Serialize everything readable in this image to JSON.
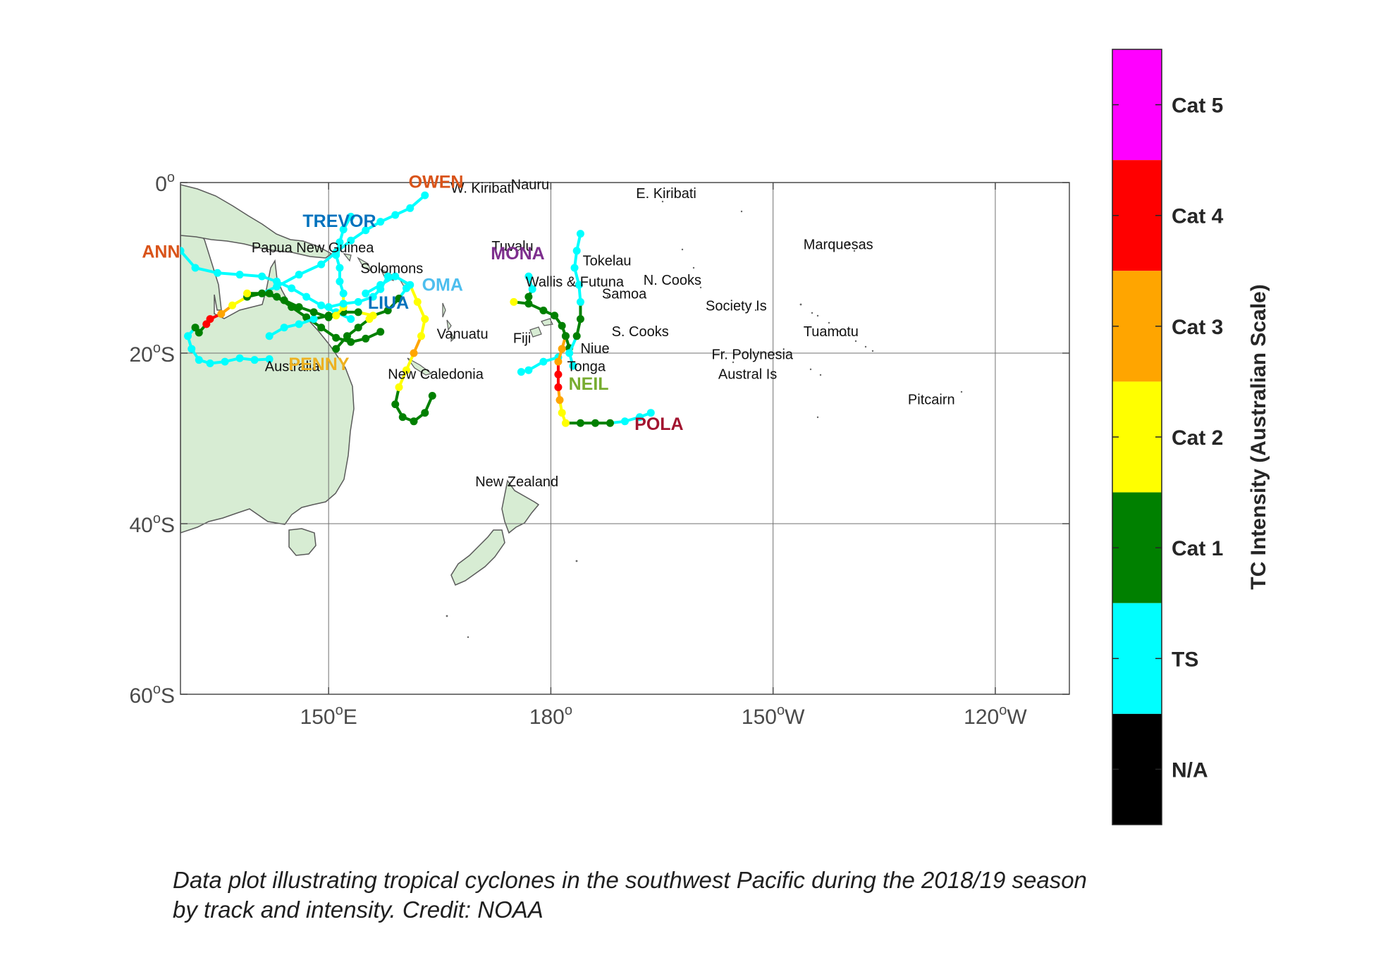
{
  "colorbar": {
    "title": "TC Intensity (Australian Scale)",
    "categories": [
      {
        "label": "Cat 5",
        "color": "#ff00ff"
      },
      {
        "label": "Cat 4",
        "color": "#ff0000"
      },
      {
        "label": "Cat 3",
        "color": "#ffa500"
      },
      {
        "label": "Cat 2",
        "color": "#ffff00"
      },
      {
        "label": "Cat 1",
        "color": "#008000"
      },
      {
        "label": "TS",
        "color": "#00ffff"
      },
      {
        "label": "N/A",
        "color": "#000000"
      }
    ]
  },
  "axes": {
    "x_ticks": [
      {
        "lon": 150,
        "label": "150°E"
      },
      {
        "lon": 180,
        "label": "180°"
      },
      {
        "lon": 210,
        "label": "150°W"
      },
      {
        "lon": 240,
        "label": "120°W"
      }
    ],
    "y_ticks": [
      {
        "lat": 0,
        "label": "0°"
      },
      {
        "lat": -20,
        "label": "20°S"
      },
      {
        "lat": -40,
        "label": "40°S"
      },
      {
        "lat": -60,
        "label": "60°S"
      }
    ],
    "lon_range": [
      130,
      250
    ],
    "lat_range": [
      -60,
      0
    ]
  },
  "place_labels": [
    {
      "text": "W. Kiribati",
      "lon": 166.5,
      "lat": -1.2
    },
    {
      "text": "Nauru",
      "lon": 174.6,
      "lat": -0.8
    },
    {
      "text": "E. Kiribati",
      "lon": 191.5,
      "lat": -1.8
    },
    {
      "text": "Papua New Guinea",
      "lon": 139.6,
      "lat": -8.2
    },
    {
      "text": "Solomons",
      "lon": 154.3,
      "lat": -10.6
    },
    {
      "text": "Tuvalu",
      "lon": 172.0,
      "lat": -8.0
    },
    {
      "text": "Tokelau",
      "lon": 184.3,
      "lat": -9.7
    },
    {
      "text": "Wallis & Futuna",
      "lon": 176.6,
      "lat": -12.2
    },
    {
      "text": "N. Cooks",
      "lon": 192.5,
      "lat": -12.0
    },
    {
      "text": "Samoa",
      "lon": 186.9,
      "lat": -13.6
    },
    {
      "text": "Marquesas",
      "lon": 214.1,
      "lat": -7.8
    },
    {
      "text": "Society Is",
      "lon": 200.9,
      "lat": -15.0
    },
    {
      "text": "Vanuatu",
      "lon": 164.6,
      "lat": -18.3
    },
    {
      "text": "Fiji",
      "lon": 174.9,
      "lat": -18.8
    },
    {
      "text": "S. Cooks",
      "lon": 188.2,
      "lat": -18.0
    },
    {
      "text": "Niue",
      "lon": 184.0,
      "lat": -20.0
    },
    {
      "text": "Tuamotu",
      "lon": 214.1,
      "lat": -18.0
    },
    {
      "text": "Fr. Polynesia",
      "lon": 201.7,
      "lat": -20.7
    },
    {
      "text": "Austral Is",
      "lon": 202.6,
      "lat": -23.0
    },
    {
      "text": "Tonga",
      "lon": 182.2,
      "lat": -22.1
    },
    {
      "text": "New Caledonia",
      "lon": 158.0,
      "lat": -23.0
    },
    {
      "text": "Australia",
      "lon": 141.4,
      "lat": -22.1
    },
    {
      "text": "Pitcairn",
      "lon": 228.2,
      "lat": -26.0
    },
    {
      "text": "New Zealand",
      "lon": 169.8,
      "lat": -35.6
    }
  ],
  "storm_labels": [
    {
      "text": "OWEN",
      "color": "#d95319",
      "lon": 160.8,
      "lat": -0.6
    },
    {
      "text": "TREVOR",
      "color": "#0072bd",
      "lon": 146.5,
      "lat": -5.2
    },
    {
      "text": "ANN",
      "color": "#d95319",
      "lon": 124.8,
      "lat": -8.8
    },
    {
      "text": "MONA",
      "color": "#7e2f8e",
      "lon": 171.9,
      "lat": -9.0
    },
    {
      "text": "OMA",
      "color": "#4dbeee",
      "lon": 162.6,
      "lat": -12.7
    },
    {
      "text": "LIUA",
      "color": "#0072bd",
      "lon": 155.3,
      "lat": -14.8
    },
    {
      "text": "PENNY",
      "color": "#edb120",
      "lon": 144.6,
      "lat": -22.0
    },
    {
      "text": "NEIL",
      "color": "#77ac30",
      "lon": 182.4,
      "lat": -24.3
    },
    {
      "text": "POLA",
      "color": "#a2142f",
      "lon": 191.3,
      "lat": -29.0
    }
  ],
  "tracks": [
    {
      "storm": "ANN",
      "points": [
        [
          130,
          -8,
          "TS"
        ],
        [
          132,
          -10,
          "TS"
        ],
        [
          135,
          -10.6,
          "TS"
        ],
        [
          138,
          -10.8,
          "TS"
        ],
        [
          141,
          -11,
          "TS"
        ],
        [
          143,
          -11.6,
          "TS"
        ],
        [
          145,
          -12.4,
          "TS"
        ],
        [
          147,
          -13.4,
          "TS"
        ],
        [
          149,
          -14.4,
          "TS"
        ],
        [
          151,
          -15.2,
          "TS"
        ],
        [
          153,
          -16,
          "TS"
        ]
      ]
    },
    {
      "storm": "OWEN-1",
      "points": [
        [
          163,
          -1.5,
          "TS"
        ],
        [
          161,
          -3,
          "TS"
        ],
        [
          159,
          -3.8,
          "TS"
        ],
        [
          157,
          -4.6,
          "TS"
        ],
        [
          155,
          -5.6,
          "TS"
        ],
        [
          153,
          -6.8,
          "TS"
        ],
        [
          151,
          -8.2,
          "TS"
        ],
        [
          149,
          -9.6,
          "TS"
        ],
        [
          146,
          -10.8,
          "TS"
        ],
        [
          143,
          -12.2,
          "TS"
        ],
        [
          141,
          -13,
          "TS"
        ],
        [
          139,
          -13.4,
          "Cat 1"
        ],
        [
          137,
          -14.4,
          "Cat 2"
        ],
        [
          135.5,
          -15.4,
          "Cat 3"
        ],
        [
          134,
          -16,
          "Cat 4"
        ],
        [
          133.5,
          -16.6,
          "Cat 4"
        ],
        [
          132.5,
          -17.6,
          "Cat 1"
        ]
      ]
    },
    {
      "storm": "OWEN-2",
      "points": [
        [
          132,
          -17,
          "Cat 1"
        ],
        [
          131,
          -18,
          "TS"
        ],
        [
          131.5,
          -19.5,
          "TS"
        ],
        [
          132.5,
          -20.8,
          "TS"
        ],
        [
          134,
          -21.2,
          "TS"
        ],
        [
          136,
          -21,
          "TS"
        ],
        [
          138,
          -20.6,
          "TS"
        ],
        [
          140,
          -20.8,
          "TS"
        ],
        [
          142,
          -20.7,
          "TS"
        ]
      ]
    },
    {
      "storm": "OWEN-3",
      "points": [
        [
          139,
          -13,
          "Cat 2"
        ],
        [
          141,
          -13,
          "Cat 1"
        ],
        [
          143,
          -13.4,
          "Cat 1"
        ],
        [
          145,
          -14.6,
          "Cat 1"
        ],
        [
          147,
          -15.8,
          "Cat 1"
        ],
        [
          149,
          -17,
          "Cat 1"
        ],
        [
          151,
          -18.2,
          "Cat 1"
        ],
        [
          153,
          -18.7,
          "Cat 1"
        ],
        [
          155,
          -18.3,
          "Cat 1"
        ],
        [
          157,
          -17.5,
          "Cat 1"
        ]
      ]
    },
    {
      "storm": "PENNY",
      "points": [
        [
          142,
          -18,
          "TS"
        ],
        [
          144,
          -17,
          "TS"
        ],
        [
          146,
          -16.6,
          "TS"
        ],
        [
          148,
          -16,
          "TS"
        ],
        [
          150,
          -15.6,
          "Cat 1"
        ],
        [
          152,
          -15.2,
          "Cat 1"
        ],
        [
          154,
          -15.2,
          "Cat 1"
        ],
        [
          156,
          -15.6,
          "Cat 2"
        ],
        [
          158,
          -15,
          "Cat 1"
        ],
        [
          159.5,
          -13.6,
          "Cat 1"
        ],
        [
          160.5,
          -12.4,
          "TS"
        ]
      ]
    },
    {
      "storm": "PENNY-2",
      "points": [
        [
          155.5,
          -16,
          "Cat 2"
        ],
        [
          154,
          -17,
          "Cat 1"
        ],
        [
          152.5,
          -18,
          "Cat 1"
        ],
        [
          151,
          -19.5,
          "Cat 1"
        ]
      ]
    },
    {
      "storm": "TREVOR",
      "points": [
        [
          153,
          -4,
          "TS"
        ],
        [
          152,
          -5.5,
          "TS"
        ],
        [
          151.5,
          -7,
          "TS"
        ],
        [
          151,
          -8.5,
          "TS"
        ],
        [
          151.5,
          -10,
          "TS"
        ],
        [
          151.5,
          -11.6,
          "TS"
        ],
        [
          152,
          -13,
          "TS"
        ],
        [
          152,
          -14.6,
          "Cat 2"
        ],
        [
          151,
          -15.6,
          "Cat 2"
        ],
        [
          150,
          -15.8,
          "Cat 1"
        ],
        [
          148,
          -15.2,
          "Cat 1"
        ],
        [
          146,
          -14.6,
          "Cat 1"
        ],
        [
          144,
          -13.8,
          "Cat 1"
        ],
        [
          142,
          -13,
          "Cat 1"
        ]
      ]
    },
    {
      "storm": "OMA",
      "points": [
        [
          155,
          -13,
          "TS"
        ],
        [
          157,
          -12,
          "TS"
        ],
        [
          159,
          -11,
          "TS"
        ],
        [
          161,
          -12,
          "TS"
        ],
        [
          162,
          -14,
          "Cat 2"
        ],
        [
          163,
          -16,
          "Cat 2"
        ],
        [
          162.5,
          -18,
          "Cat 2"
        ],
        [
          161.5,
          -20,
          "Cat 3"
        ],
        [
          160.5,
          -22,
          "Cat 2"
        ],
        [
          159.5,
          -24,
          "Cat 2"
        ],
        [
          159,
          -26,
          "Cat 1"
        ],
        [
          160,
          -27.5,
          "Cat 1"
        ],
        [
          161.5,
          -28,
          "Cat 1"
        ],
        [
          163,
          -27,
          "Cat 1"
        ],
        [
          164,
          -25,
          "Cat 1"
        ]
      ]
    },
    {
      "storm": "LIUA",
      "points": [
        [
          158,
          -11,
          "TS"
        ],
        [
          157,
          -12.5,
          "TS"
        ],
        [
          156,
          -13.4,
          "TS"
        ],
        [
          154,
          -14,
          "TS"
        ],
        [
          152,
          -14.2,
          "TS"
        ],
        [
          150,
          -14.6,
          "TS"
        ]
      ]
    },
    {
      "storm": "MONA",
      "points": [
        [
          175,
          -14,
          "Cat 2"
        ],
        [
          177,
          -14.2,
          "Cat 1"
        ],
        [
          179,
          -15,
          "Cat 1"
        ],
        [
          180.5,
          -15.6,
          "Cat 1"
        ],
        [
          181.5,
          -16.8,
          "Cat 1"
        ],
        [
          182,
          -18,
          "Cat 1"
        ],
        [
          182.5,
          -19.4,
          "Cat 1"
        ]
      ]
    },
    {
      "storm": "MONA-2",
      "points": [
        [
          177,
          -11,
          "TS"
        ],
        [
          177.5,
          -12.5,
          "TS"
        ],
        [
          177,
          -13.4,
          "Cat 1"
        ]
      ]
    },
    {
      "storm": "NEIL",
      "points": [
        [
          184,
          -6,
          "TS"
        ],
        [
          183.5,
          -8,
          "TS"
        ],
        [
          183.2,
          -10,
          "TS"
        ],
        [
          183.8,
          -12,
          "TS"
        ],
        [
          184,
          -14,
          "TS"
        ],
        [
          184,
          -16,
          "Cat 1"
        ],
        [
          183.5,
          -18,
          "Cat 1"
        ],
        [
          182.5,
          -20,
          "TS"
        ],
        [
          183,
          -21.5,
          "TS"
        ]
      ]
    },
    {
      "storm": "NEIL-2",
      "points": [
        [
          181,
          -20.5,
          "TS"
        ],
        [
          179,
          -21,
          "TS"
        ],
        [
          177,
          -22,
          "TS"
        ],
        [
          176,
          -22.2,
          "TS"
        ]
      ]
    },
    {
      "storm": "POLA",
      "points": [
        [
          182,
          -18,
          "Cat 1"
        ],
        [
          181.5,
          -19.5,
          "Cat 3"
        ],
        [
          181,
          -21,
          "Cat 3"
        ],
        [
          181,
          -22.5,
          "Cat 4"
        ],
        [
          181,
          -24,
          "Cat 4"
        ],
        [
          181.2,
          -25.5,
          "Cat 3"
        ],
        [
          181.5,
          -27,
          "Cat 2"
        ],
        [
          182,
          -28.2,
          "Cat 2"
        ],
        [
          184,
          -28.2,
          "Cat 1"
        ],
        [
          186,
          -28.2,
          "Cat 1"
        ],
        [
          188,
          -28.2,
          "Cat 1"
        ],
        [
          190,
          -28,
          "TS"
        ],
        [
          192,
          -27.5,
          "TS"
        ],
        [
          193.5,
          -27,
          "TS"
        ]
      ]
    }
  ],
  "caption": {
    "line1": "Data plot illustrating tropical cyclones in the southwest Pacific during the 2018/19 season",
    "line2": "by track and intensity. Credit: NOAA"
  }
}
